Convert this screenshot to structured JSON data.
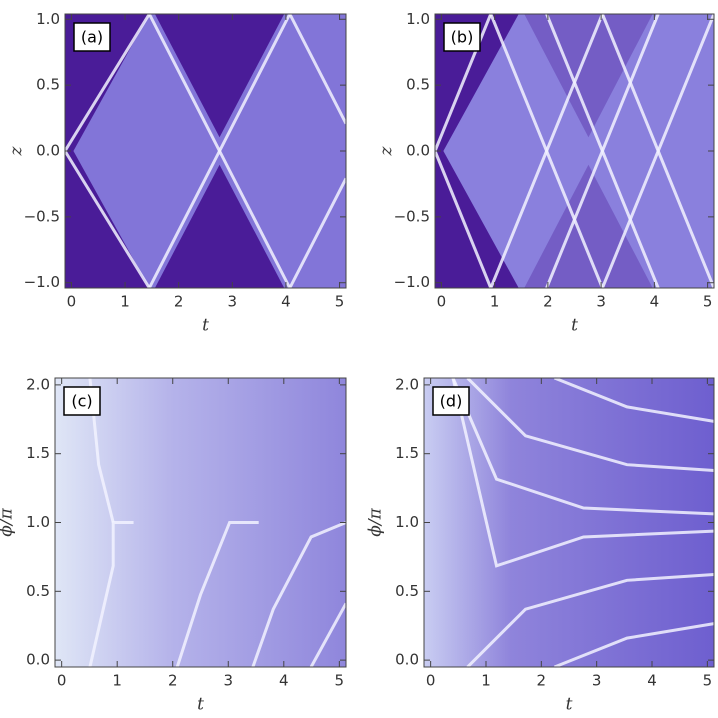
{
  "chart_data": [
    {
      "type": "density",
      "panel_label": "(a)",
      "x_label": "t",
      "y_label": "z",
      "xlim": [
        -0.12,
        5.12
      ],
      "ylim": [
        -1.04,
        1.04
      ],
      "xticks": [
        0,
        1,
        2,
        3,
        4,
        5
      ],
      "yticks": [
        {
          "value": -1,
          "label": "−1.0"
        },
        {
          "value": -0.5,
          "label": "−0.5"
        },
        {
          "value": 0,
          "label": "0.0"
        },
        {
          "value": 0.5,
          "label": "0.5"
        },
        {
          "value": 1,
          "label": "1.0"
        }
      ]
    },
    {
      "type": "density",
      "panel_label": "(b)",
      "x_label": "t",
      "y_label": "z",
      "xlim": [
        -0.12,
        5.12
      ],
      "ylim": [
        -1.04,
        1.04
      ],
      "xticks": [
        0,
        1,
        2,
        3,
        4,
        5
      ],
      "yticks": [
        {
          "value": -1,
          "label": "−1.0"
        },
        {
          "value": -0.5,
          "label": "−0.5"
        },
        {
          "value": 0,
          "label": "0.0"
        },
        {
          "value": 0.5,
          "label": "0.5"
        },
        {
          "value": 1,
          "label": "1.0"
        }
      ]
    },
    {
      "type": "density",
      "panel_label": "(c)",
      "x_label": "t",
      "y_label": "ϕ/π",
      "xlim": [
        -0.12,
        5.12
      ],
      "ylim": [
        -0.05,
        2.05
      ],
      "xticks": [
        0,
        1,
        2,
        3,
        4,
        5
      ],
      "yticks": [
        {
          "value": 0,
          "label": "0.0"
        },
        {
          "value": 0.5,
          "label": "0.5"
        },
        {
          "value": 1,
          "label": "1.0"
        },
        {
          "value": 1.5,
          "label": "1.5"
        },
        {
          "value": 2,
          "label": "2.0"
        }
      ]
    },
    {
      "type": "density",
      "panel_label": "(d)",
      "x_label": "t",
      "y_label": "ϕ/π",
      "xlim": [
        -0.12,
        5.12
      ],
      "ylim": [
        -0.05,
        2.05
      ],
      "xticks": [
        0,
        1,
        2,
        3,
        4,
        5
      ],
      "yticks": [
        {
          "value": 0,
          "label": "0.0"
        },
        {
          "value": 0.5,
          "label": "0.5"
        },
        {
          "value": 1,
          "label": "1.0"
        },
        {
          "value": 1.5,
          "label": "1.5"
        },
        {
          "value": 2,
          "label": "2.0"
        }
      ]
    }
  ]
}
